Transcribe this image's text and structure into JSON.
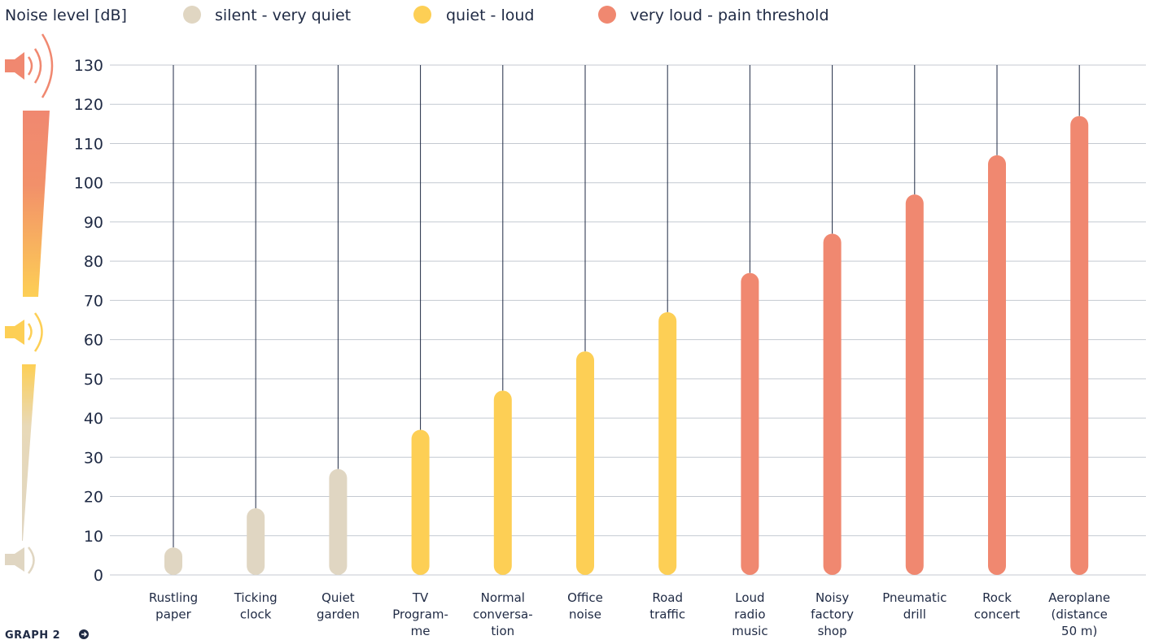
{
  "header": {
    "axis_title": "Noise level [dB]"
  },
  "legend": [
    {
      "label": "silent - very quiet",
      "color": "#e0d6c2"
    },
    {
      "label": "quiet - loud",
      "color": "#fdcf55"
    },
    {
      "label": "very loud - pain threshold",
      "color": "#f08870"
    }
  ],
  "footer": {
    "label": "GRAPH 2",
    "icon": "arrow-right-circle-icon"
  },
  "chart_data": {
    "type": "bar",
    "ylabel": "Noise level [dB]",
    "ylim": [
      0,
      130
    ],
    "yticks": [
      0,
      10,
      20,
      30,
      40,
      50,
      60,
      70,
      80,
      90,
      100,
      110,
      120,
      130
    ],
    "grid": true,
    "legend_position": "top",
    "categories": [
      [
        "Rustling",
        "paper"
      ],
      [
        "Ticking",
        "clock"
      ],
      [
        "Quiet",
        "garden"
      ],
      [
        "TV",
        "Program-",
        "me"
      ],
      [
        "Normal",
        "conversa-",
        "tion"
      ],
      [
        "Office",
        "noise"
      ],
      [
        "Road",
        "traffic"
      ],
      [
        "Loud",
        "radio",
        "music"
      ],
      [
        "Noisy",
        "factory",
        "shop"
      ],
      [
        "Pneumatic",
        "drill"
      ],
      [
        "Rock",
        "concert"
      ],
      [
        "Aeroplane",
        "(distance",
        "50 m)"
      ]
    ],
    "values": [
      7,
      17,
      27,
      37,
      47,
      57,
      67,
      77,
      87,
      97,
      107,
      117
    ],
    "groups": [
      0,
      0,
      0,
      1,
      1,
      1,
      1,
      2,
      2,
      2,
      2,
      2
    ],
    "scale_icons": [
      "speaker-loud-icon",
      "speaker-medium-icon",
      "speaker-quiet-icon"
    ]
  }
}
